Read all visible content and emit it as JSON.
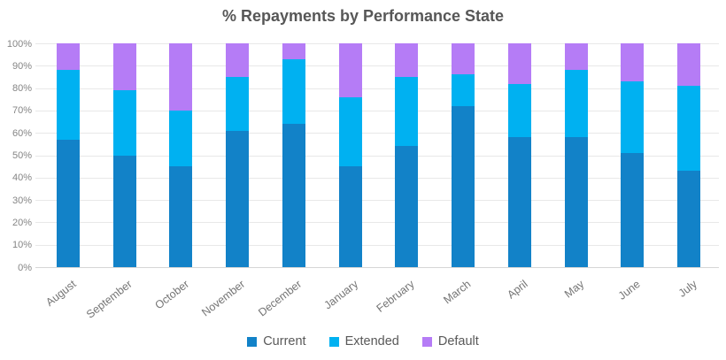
{
  "title": "% Repayments by Performance State",
  "chart_data": {
    "type": "bar",
    "stacked": true,
    "title": "% Repayments by Performance State",
    "categories": [
      "August",
      "September",
      "October",
      "November",
      "December",
      "January",
      "February",
      "March",
      "April",
      "May",
      "June",
      "July"
    ],
    "series": [
      {
        "name": "Current",
        "color": "#1282c8",
        "values": [
          57,
          50,
          45,
          61,
          64,
          45,
          54,
          72,
          58,
          58,
          51,
          43
        ]
      },
      {
        "name": "Extended",
        "color": "#00b1f1",
        "values": [
          31,
          29,
          25,
          24,
          29,
          31,
          31,
          14,
          24,
          30,
          32,
          38
        ]
      },
      {
        "name": "Default",
        "color": "#b57cf6",
        "values": [
          12,
          21,
          30,
          15,
          7,
          24,
          15,
          14,
          18,
          12,
          17,
          19
        ]
      }
    ],
    "xlabel": "",
    "ylabel": "",
    "ylim": [
      0,
      100
    ],
    "ytick_labels": [
      "0%",
      "10%",
      "20%",
      "30%",
      "40%",
      "50%",
      "60%",
      "70%",
      "80%",
      "90%",
      "100%"
    ],
    "grid": true,
    "legend_position": "bottom",
    "legend": [
      "Current",
      "Extended",
      "Default"
    ]
  },
  "colors": {
    "title_text": "#575757",
    "axis_text": "#858585",
    "gridline": "#e8e8e8"
  }
}
